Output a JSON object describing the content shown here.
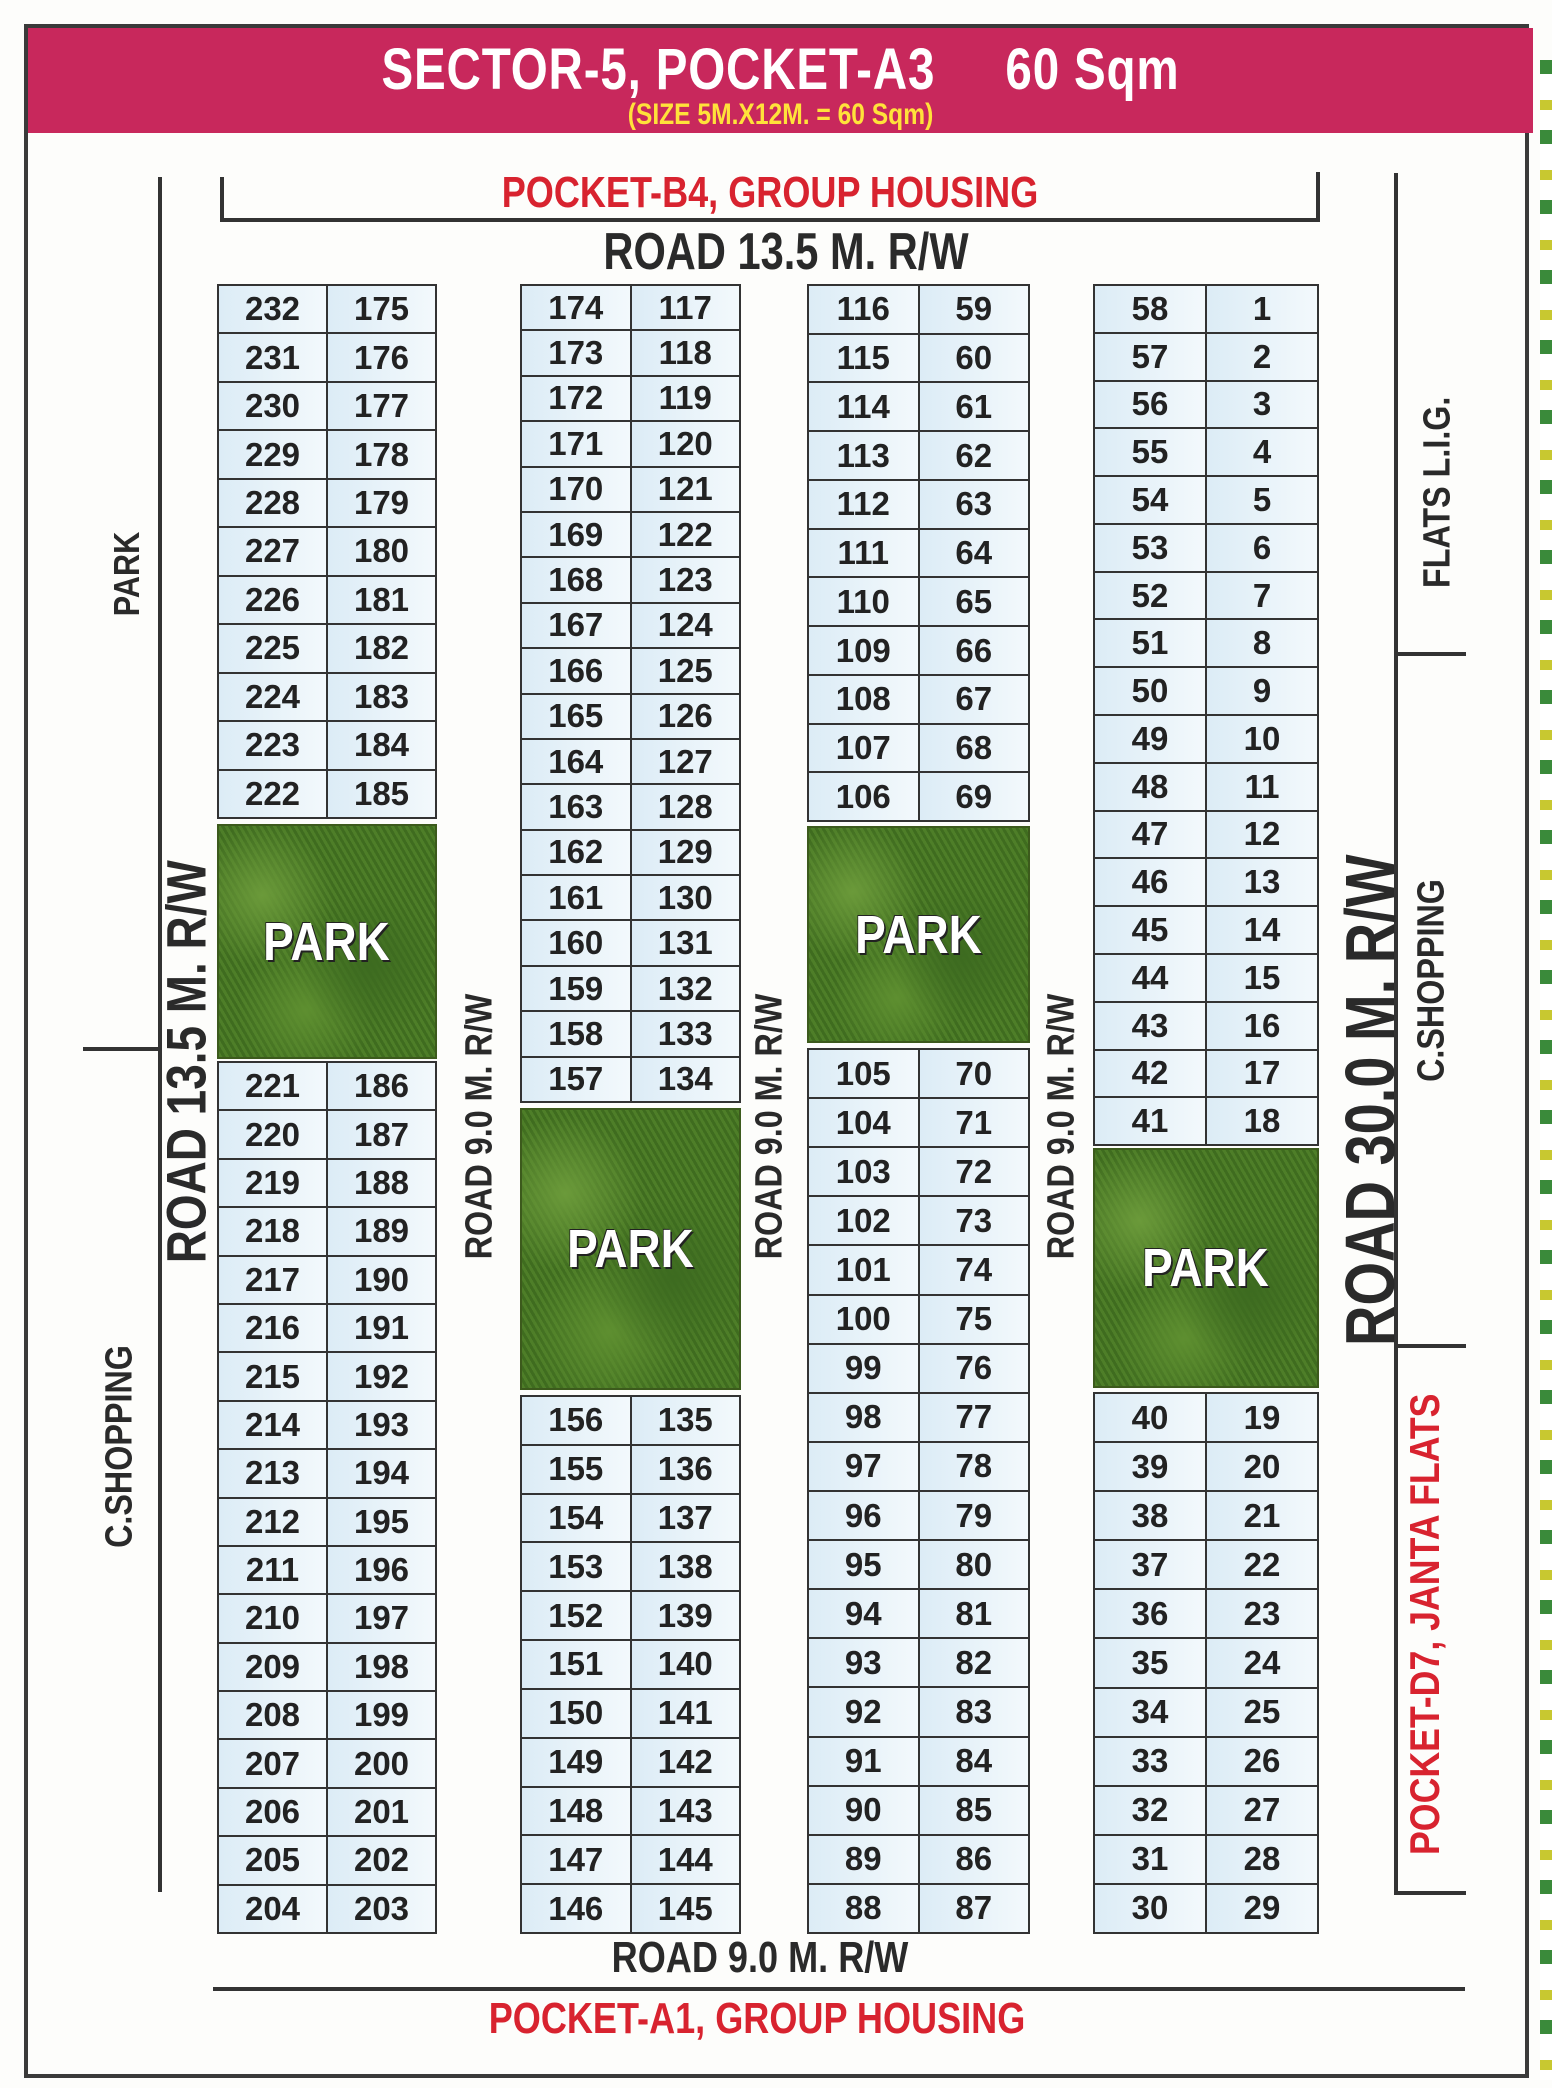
{
  "header": {
    "title": "SECTOR-5, POCKET-A3     60 Sqm",
    "subtitle": "(SIZE 5M.X12M. = 60 Sqm)"
  },
  "labels": {
    "top_pocket": "POCKET-B4,  GROUP HOUSING",
    "top_road": "ROAD 13.5 M. R/W",
    "left_park": "PARK",
    "left_shopping": "C.SHOPPING",
    "left_road": "ROAD 13.5 M. R/W",
    "road_9_a": "ROAD 9.0 M. R/W",
    "road_9_b": "ROAD 9.0 M. R/W",
    "road_9_c": "ROAD 9.0 M. R/W",
    "right_road": "ROAD 30.0 M. R/W",
    "right_flats": "FLATS L.I.G.",
    "right_shopping": "C.SHOPPING",
    "right_pocket": "POCKET-D7, JANTA FLATS",
    "bottom_road": "ROAD 9.0 M. R/W",
    "bottom_pocket": "POCKET-A1,  GROUP HOUSING"
  },
  "park_label": "PARK",
  "colors": {
    "header": "#c8285c",
    "subtitle": "#ffe23a",
    "pocket_text": "#d8232f",
    "plot_fill": "#dcecf6",
    "park": "#4e7e28"
  },
  "columns": [
    {
      "top": [
        [
          "232",
          "175"
        ],
        [
          "231",
          "176"
        ],
        [
          "230",
          "177"
        ],
        [
          "229",
          "178"
        ],
        [
          "228",
          "179"
        ],
        [
          "227",
          "180"
        ],
        [
          "226",
          "181"
        ],
        [
          "225",
          "182"
        ],
        [
          "224",
          "183"
        ],
        [
          "223",
          "184"
        ],
        [
          "222",
          "185"
        ]
      ],
      "bottom": [
        [
          "221",
          "186"
        ],
        [
          "220",
          "187"
        ],
        [
          "219",
          "188"
        ],
        [
          "218",
          "189"
        ],
        [
          "217",
          "190"
        ],
        [
          "216",
          "191"
        ],
        [
          "215",
          "192"
        ],
        [
          "214",
          "193"
        ],
        [
          "213",
          "194"
        ],
        [
          "212",
          "195"
        ],
        [
          "211",
          "196"
        ],
        [
          "210",
          "197"
        ],
        [
          "209",
          "198"
        ],
        [
          "208",
          "199"
        ],
        [
          "207",
          "200"
        ],
        [
          "206",
          "201"
        ],
        [
          "205",
          "202"
        ],
        [
          "204",
          "203"
        ]
      ]
    },
    {
      "top": [
        [
          "174",
          "117"
        ],
        [
          "173",
          "118"
        ],
        [
          "172",
          "119"
        ],
        [
          "171",
          "120"
        ],
        [
          "170",
          "121"
        ],
        [
          "169",
          "122"
        ],
        [
          "168",
          "123"
        ],
        [
          "167",
          "124"
        ],
        [
          "166",
          "125"
        ],
        [
          "165",
          "126"
        ],
        [
          "164",
          "127"
        ],
        [
          "163",
          "128"
        ],
        [
          "162",
          "129"
        ],
        [
          "161",
          "130"
        ],
        [
          "160",
          "131"
        ],
        [
          "159",
          "132"
        ],
        [
          "158",
          "133"
        ],
        [
          "157",
          "134"
        ]
      ],
      "bottom": [
        [
          "156",
          "135"
        ],
        [
          "155",
          "136"
        ],
        [
          "154",
          "137"
        ],
        [
          "153",
          "138"
        ],
        [
          "152",
          "139"
        ],
        [
          "151",
          "140"
        ],
        [
          "150",
          "141"
        ],
        [
          "149",
          "142"
        ],
        [
          "148",
          "143"
        ],
        [
          "147",
          "144"
        ],
        [
          "146",
          "145"
        ]
      ]
    },
    {
      "top": [
        [
          "116",
          "59"
        ],
        [
          "115",
          "60"
        ],
        [
          "114",
          "61"
        ],
        [
          "113",
          "62"
        ],
        [
          "112",
          "63"
        ],
        [
          "111",
          "64"
        ],
        [
          "110",
          "65"
        ],
        [
          "109",
          "66"
        ],
        [
          "108",
          "67"
        ],
        [
          "107",
          "68"
        ],
        [
          "106",
          "69"
        ]
      ],
      "bottom": [
        [
          "105",
          "70"
        ],
        [
          "104",
          "71"
        ],
        [
          "103",
          "72"
        ],
        [
          "102",
          "73"
        ],
        [
          "101",
          "74"
        ],
        [
          "100",
          "75"
        ],
        [
          "99",
          "76"
        ],
        [
          "98",
          "77"
        ],
        [
          "97",
          "78"
        ],
        [
          "96",
          "79"
        ],
        [
          "95",
          "80"
        ],
        [
          "94",
          "81"
        ],
        [
          "93",
          "82"
        ],
        [
          "92",
          "83"
        ],
        [
          "91",
          "84"
        ],
        [
          "90",
          "85"
        ],
        [
          "89",
          "86"
        ],
        [
          "88",
          "87"
        ]
      ]
    },
    {
      "top": [
        [
          "58",
          "1"
        ],
        [
          "57",
          "2"
        ],
        [
          "56",
          "3"
        ],
        [
          "55",
          "4"
        ],
        [
          "54",
          "5"
        ],
        [
          "53",
          "6"
        ],
        [
          "52",
          "7"
        ],
        [
          "51",
          "8"
        ],
        [
          "50",
          "9"
        ],
        [
          "49",
          "10"
        ],
        [
          "48",
          "11"
        ],
        [
          "47",
          "12"
        ],
        [
          "46",
          "13"
        ],
        [
          "45",
          "14"
        ],
        [
          "44",
          "15"
        ],
        [
          "43",
          "16"
        ],
        [
          "42",
          "17"
        ],
        [
          "41",
          "18"
        ]
      ],
      "bottom": [
        [
          "40",
          "19"
        ],
        [
          "39",
          "20"
        ],
        [
          "38",
          "21"
        ],
        [
          "37",
          "22"
        ],
        [
          "36",
          "23"
        ],
        [
          "35",
          "24"
        ],
        [
          "34",
          "25"
        ],
        [
          "33",
          "26"
        ],
        [
          "32",
          "27"
        ],
        [
          "31",
          "28"
        ],
        [
          "30",
          "29"
        ]
      ]
    }
  ]
}
